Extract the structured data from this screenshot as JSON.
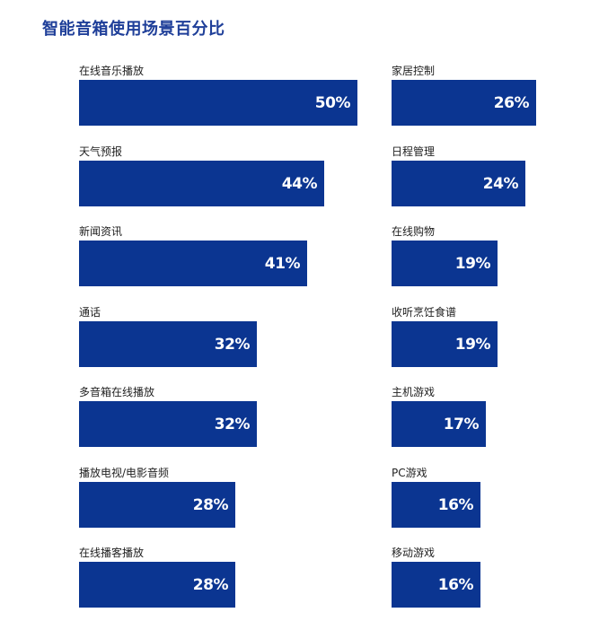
{
  "title": "智能音箱使用场景百分比",
  "chart_data": {
    "type": "bar",
    "orientation": "horizontal",
    "xlim": [
      0,
      100
    ],
    "unit": "%",
    "grid": false,
    "legend": "none",
    "color": "#0b3591",
    "columns": [
      [
        {
          "label": "在线音乐播放",
          "value": 50,
          "display": "50%"
        },
        {
          "label": "天气预报",
          "value": 44,
          "display": "44%"
        },
        {
          "label": "新闻资讯",
          "value": 41,
          "display": "41%"
        },
        {
          "label": "通话",
          "value": 32,
          "display": "32%"
        },
        {
          "label": "多音箱在线播放",
          "value": 32,
          "display": "32%"
        },
        {
          "label": "播放电视/电影音频",
          "value": 28,
          "display": "28%"
        },
        {
          "label": "在线播客播放",
          "value": 28,
          "display": "28%"
        }
      ],
      [
        {
          "label": "家居控制",
          "value": 26,
          "display": "26%"
        },
        {
          "label": "日程管理",
          "value": 24,
          "display": "24%"
        },
        {
          "label": "在线购物",
          "value": 19,
          "display": "19%"
        },
        {
          "label": "收听烹饪食谱",
          "value": 19,
          "display": "19%"
        },
        {
          "label": "主机游戏",
          "value": 17,
          "display": "17%"
        },
        {
          "label": "PC游戏",
          "value": 16,
          "display": "16%"
        },
        {
          "label": "移动游戏",
          "value": 16,
          "display": "16%"
        }
      ]
    ]
  }
}
